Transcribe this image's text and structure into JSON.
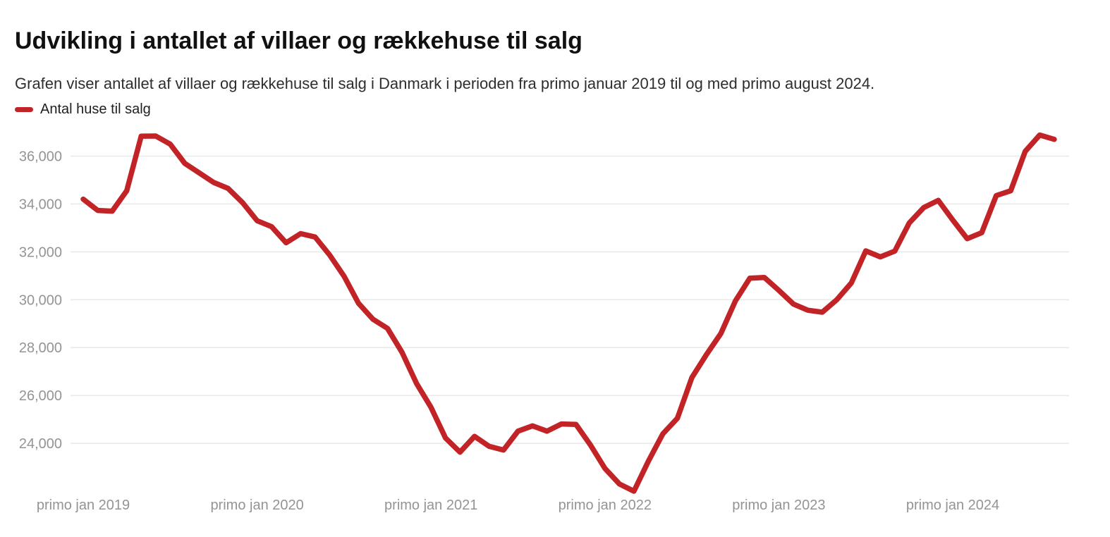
{
  "header": {
    "title": "Udvikling i antallet af villaer og rækkehuse til salg",
    "subtitle": "Grafen viser antallet af villaer og rækkehuse til salg i Danmark i perioden fra primo januar 2019 til og med primo august 2024."
  },
  "legend": {
    "label": "Antal huse til salg"
  },
  "chart_data": {
    "type": "line",
    "title": "Udvikling i antallet af villaer og rækkehuse til salg",
    "x_period_start": "primo januar 2019",
    "x_period_end": "primo august 2024",
    "x_interval": "monthly",
    "grid": true,
    "grid_color": "#e8e8e8",
    "axis_label_color": "#949494",
    "ylim": [
      21500,
      37400
    ],
    "y_ticks": [
      {
        "value": 36000,
        "label": "36,000"
      },
      {
        "value": 34000,
        "label": "34,000"
      },
      {
        "value": 32000,
        "label": "32,000"
      },
      {
        "value": 30000,
        "label": "30,000"
      },
      {
        "value": 28000,
        "label": "28,000"
      },
      {
        "value": 26000,
        "label": "26,000"
      },
      {
        "value": 24000,
        "label": "24,000"
      }
    ],
    "x_ticks": [
      {
        "month_index": 0,
        "label": "primo jan 2019"
      },
      {
        "month_index": 12,
        "label": "primo jan 2020"
      },
      {
        "month_index": 24,
        "label": "primo jan 2021"
      },
      {
        "month_index": 36,
        "label": "primo jan 2022"
      },
      {
        "month_index": 48,
        "label": "primo jan 2023"
      },
      {
        "month_index": 60,
        "label": "primo jan 2024"
      }
    ],
    "series": [
      {
        "name": "Antal huse til salg",
        "color": "#c22326",
        "values": [
          34200,
          33730,
          33700,
          34550,
          36830,
          36840,
          36500,
          35700,
          35300,
          34900,
          34650,
          34050,
          33300,
          33050,
          32380,
          32760,
          32620,
          31870,
          30980,
          29850,
          29180,
          28800,
          27800,
          26500,
          25500,
          24220,
          23630,
          24290,
          23880,
          23720,
          24510,
          24730,
          24510,
          24810,
          24790,
          23930,
          22950,
          22300,
          22000,
          23260,
          24400,
          25050,
          26750,
          27700,
          28590,
          29950,
          30900,
          30930,
          30390,
          29820,
          29560,
          29480,
          30000,
          30700,
          32040,
          31790,
          32030,
          33210,
          33850,
          34150,
          33330,
          32550,
          32800,
          34350,
          34550,
          36200,
          36880,
          36700
        ]
      }
    ]
  }
}
